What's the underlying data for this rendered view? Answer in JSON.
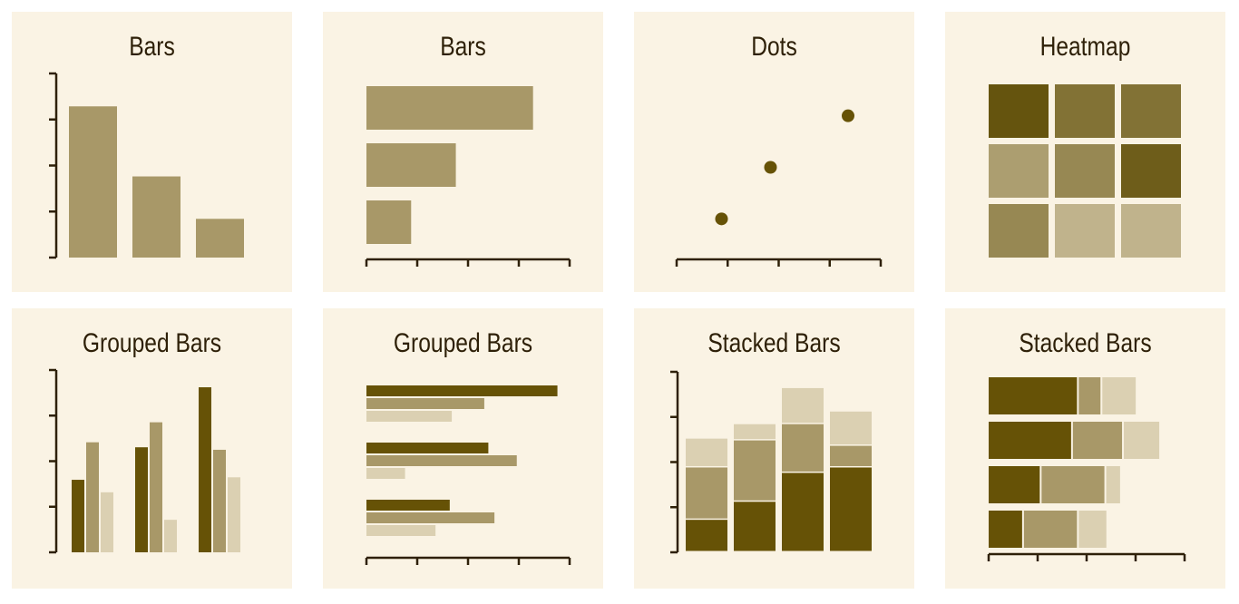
{
  "colors": {
    "panel_bg": "#faf3e4",
    "axis": "#2e2008",
    "dark": "#665206",
    "mid": "#a89868",
    "light": "#dbd0b2"
  },
  "chart_data": [
    {
      "type": "bar",
      "orientation": "vertical",
      "title": "Bars",
      "values": [
        82,
        44,
        21
      ],
      "ylim": [
        0,
        100
      ],
      "y_ticks": 4
    },
    {
      "type": "bar",
      "orientation": "horizontal",
      "title": "Bars",
      "values": [
        82,
        44,
        22
      ],
      "xlim": [
        0,
        100
      ],
      "x_ticks": 4
    },
    {
      "type": "scatter",
      "title": "Dots",
      "x": [
        22,
        46,
        84
      ],
      "y": [
        22,
        50,
        78
      ],
      "xlim": [
        0,
        100
      ],
      "ylim": [
        0,
        100
      ],
      "x_ticks": 4
    },
    {
      "type": "heatmap",
      "title": "Heatmap",
      "values": [
        [
          0.95,
          0.72,
          0.72
        ],
        [
          0.38,
          0.55,
          0.88
        ],
        [
          0.55,
          0.22,
          0.22
        ]
      ],
      "color_range": [
        "#dbd0b2",
        "#5f4d05"
      ]
    },
    {
      "type": "bar",
      "orientation": "vertical",
      "title": "Grouped Bars",
      "series": [
        {
          "values": [
            29,
            42,
            66
          ]
        },
        {
          "values": [
            44,
            52,
            41
          ]
        },
        {
          "values": [
            24,
            13,
            30
          ]
        }
      ],
      "ylim": [
        0,
        70
      ],
      "y_ticks": 4
    },
    {
      "type": "bar",
      "orientation": "horizontal",
      "title": "Grouped Bars",
      "series": [
        {
          "values": [
            94,
            60,
            41
          ]
        },
        {
          "values": [
            58,
            74,
            63
          ]
        },
        {
          "values": [
            42,
            19,
            34
          ]
        }
      ],
      "xlim": [
        0,
        100
      ],
      "x_ticks": 4
    },
    {
      "type": "bar",
      "orientation": "vertical",
      "stacked": true,
      "title": "Stacked Bars",
      "series": [
        {
          "values": [
            18,
            28,
            44,
            47
          ]
        },
        {
          "values": [
            29,
            34,
            27,
            12
          ]
        },
        {
          "values": [
            16,
            9,
            20,
            19
          ]
        }
      ],
      "ylim": [
        0,
        100
      ],
      "y_ticks": 4
    },
    {
      "type": "bar",
      "orientation": "horizontal",
      "stacked": true,
      "title": "Stacked Bars",
      "series": [
        {
          "values": [
            46,
            43,
            27,
            18
          ]
        },
        {
          "values": [
            12,
            26,
            33,
            28
          ]
        },
        {
          "values": [
            18,
            19,
            8,
            15
          ]
        }
      ],
      "xlim": [
        0,
        100
      ],
      "x_ticks": 4
    }
  ]
}
